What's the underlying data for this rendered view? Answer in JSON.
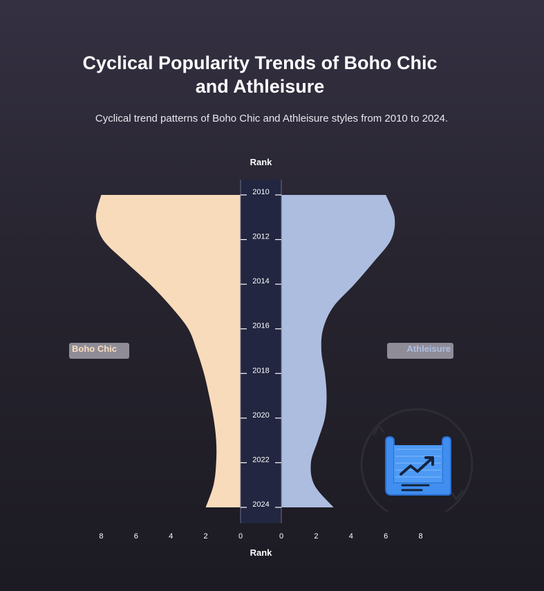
{
  "title": "Cyclical Popularity Trends of Boho Chic and Athleisure",
  "subtitle": "Cyclical trend patterns of Boho Chic and Athleisure styles from 2010 to 2024.",
  "colors": {
    "boho": "#f8dbbb",
    "athleisure": "#adbde0",
    "axis_band": "#222640"
  },
  "icon": "chart-scroll-icon",
  "chart_data": {
    "type": "area",
    "layout": "mirrored-violin",
    "title": "Cyclical Popularity Trends of Boho Chic and Athleisure",
    "ylabel_top": "Rank",
    "xlabel": "Rank",
    "years": [
      2010,
      2011,
      2012,
      2013,
      2014,
      2015,
      2016,
      2017,
      2018,
      2019,
      2020,
      2021,
      2022,
      2023,
      2024
    ],
    "year_ticks": [
      "2010",
      "2012",
      "2014",
      "2016",
      "2018",
      "2020",
      "2022",
      "2024"
    ],
    "xlim": [
      0,
      8
    ],
    "x_ticks": [
      "8",
      "6",
      "4",
      "2",
      "0"
    ],
    "x_ticks_right": [
      "0",
      "2",
      "4",
      "6",
      "8"
    ],
    "series": [
      {
        "name": "Boho Chic",
        "side": "left",
        "values": [
          8.0,
          8.3,
          7.9,
          6.6,
          5.2,
          4.0,
          3.0,
          2.5,
          2.1,
          1.8,
          1.55,
          1.4,
          1.4,
          1.55,
          2.0
        ]
      },
      {
        "name": "Athleisure",
        "side": "right",
        "values": [
          6.0,
          6.5,
          6.3,
          5.3,
          4.2,
          3.0,
          2.4,
          2.3,
          2.5,
          2.6,
          2.5,
          2.1,
          1.7,
          1.9,
          3.0
        ]
      }
    ]
  }
}
